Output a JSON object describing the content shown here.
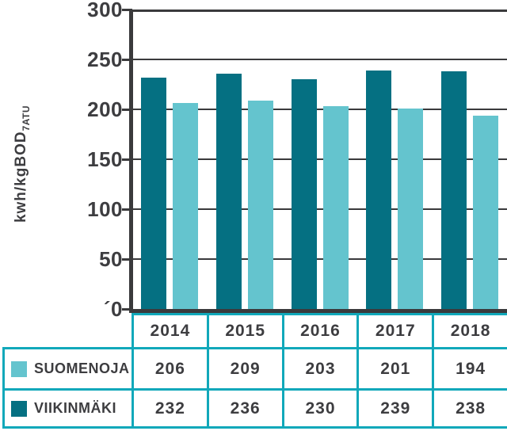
{
  "chart_data": {
    "type": "bar",
    "title": "",
    "ylabel_main": "kwh/kgBOD",
    "ylabel_sub": "7ATU",
    "ylim": [
      0,
      300
    ],
    "ytick_step": 50,
    "ytick_labels": [
      "300",
      "250",
      "200",
      "150",
      "100",
      "50",
      "´0"
    ],
    "grid": true,
    "categories": [
      "2014",
      "2015",
      "2016",
      "2017",
      "2018"
    ],
    "series": [
      {
        "name": "SUOMENOJA",
        "color": "#64c4ce",
        "values": [
          206,
          209,
          203,
          201,
          194
        ]
      },
      {
        "name": "VIIKINMÄKI",
        "color": "#057082",
        "values": [
          232,
          236,
          230,
          239,
          238
        ]
      }
    ],
    "legend_position": "table-rows-below"
  },
  "colors": {
    "table_border": "#11a8ba",
    "axis": "#3a3a3c",
    "text": "#3d3d40",
    "background": "#ffffff"
  }
}
